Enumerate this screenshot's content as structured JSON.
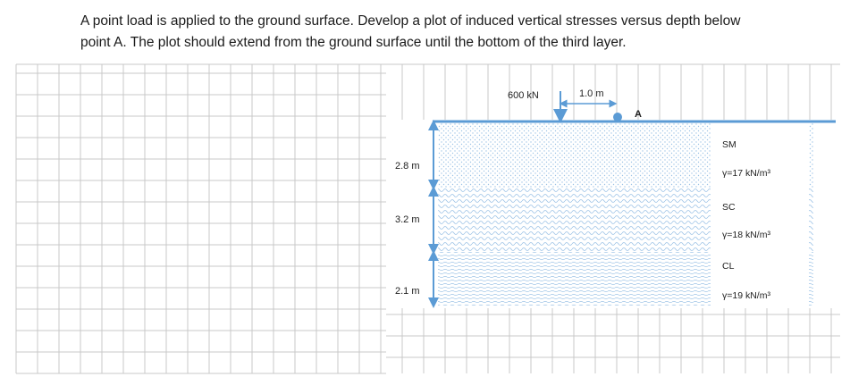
{
  "problem": {
    "line1": "A point load is applied to the ground surface. Develop a plot of induced vertical stresses versus depth below",
    "line2": "point A. The plot should extend from the ground surface until the bottom of the third layer."
  },
  "diagram": {
    "load_label": "600 kN",
    "offset_label": "1.0 m",
    "point_label": "A",
    "layers": [
      {
        "thickness_label": "2.8 m",
        "soil": "SM",
        "unit_weight": "γ=17 kN/m³"
      },
      {
        "thickness_label": "3.2 m",
        "soil": "SC",
        "unit_weight": "γ=18 kN/m³"
      },
      {
        "thickness_label": "2.1 m",
        "soil": "CL",
        "unit_weight": "γ=19 kN/m³"
      }
    ]
  },
  "colors": {
    "ground_line": "#5b9bd5",
    "arrow": "#5b9bd5",
    "grid": "#c8c8c8",
    "pattern": "#9dc3e6"
  }
}
